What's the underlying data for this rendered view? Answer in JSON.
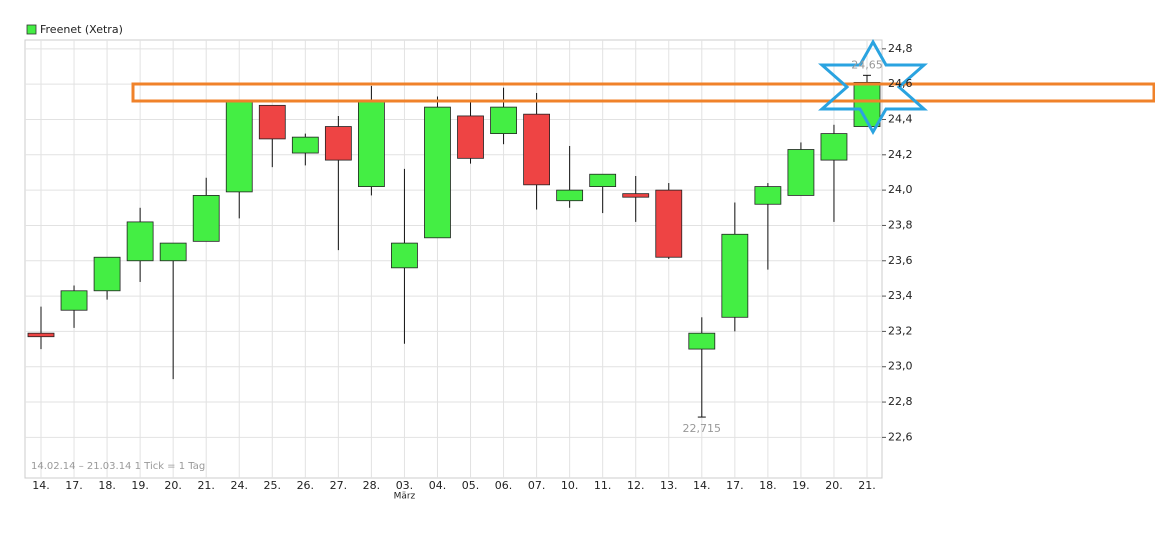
{
  "chart_data": {
    "type": "candlestick",
    "legend": "Freenet (Xetra)",
    "legend_color": "#44ee44",
    "up_color": "#44ee44",
    "down_color": "#ee4444",
    "caption": "14.02.14 – 21.03.14   1 Tick = 1 Tag",
    "month_label": "März",
    "categories": [
      "14.",
      "17.",
      "18.",
      "19.",
      "20.",
      "21.",
      "24.",
      "25.",
      "26.",
      "27.",
      "28.",
      "03.",
      "04.",
      "05.",
      "06.",
      "07.",
      "10.",
      "11.",
      "12.",
      "13.",
      "14.",
      "17.",
      "18.",
      "19.",
      "20.",
      "21."
    ],
    "open": [
      23.19,
      23.32,
      23.43,
      23.6,
      23.6,
      23.71,
      23.99,
      24.48,
      24.21,
      24.36,
      24.02,
      23.56,
      23.73,
      24.42,
      24.32,
      24.43,
      23.94,
      24.02,
      23.98,
      24.0,
      23.1,
      23.28,
      23.92,
      23.97,
      24.17,
      24.36
    ],
    "high": [
      23.34,
      23.46,
      23.62,
      23.9,
      23.7,
      24.07,
      24.51,
      24.48,
      24.32,
      24.42,
      24.59,
      24.12,
      24.53,
      24.51,
      24.58,
      24.55,
      24.25,
      24.09,
      24.08,
      24.04,
      23.28,
      23.93,
      24.04,
      24.27,
      24.37,
      24.65
    ],
    "low": [
      23.1,
      23.22,
      23.38,
      23.48,
      22.93,
      23.71,
      23.84,
      24.13,
      24.14,
      23.66,
      23.97,
      23.13,
      23.73,
      24.15,
      24.26,
      23.89,
      23.9,
      23.87,
      23.82,
      23.61,
      22.715,
      23.2,
      23.55,
      23.97,
      23.82,
      24.36
    ],
    "close": [
      23.17,
      23.43,
      23.62,
      23.82,
      23.7,
      23.97,
      24.51,
      24.29,
      24.3,
      24.17,
      24.51,
      23.7,
      24.47,
      24.18,
      24.47,
      24.03,
      24.0,
      24.09,
      23.96,
      23.62,
      23.19,
      23.75,
      24.02,
      24.23,
      24.32,
      24.61
    ],
    "annotations": [
      {
        "value": 24.65,
        "label": "24,65"
      },
      {
        "value": 22.715,
        "label": "22,715"
      }
    ],
    "ylim": [
      22.37,
      24.85
    ],
    "yticks": [
      {
        "value": 22.6,
        "label": "22,6"
      },
      {
        "value": 22.8,
        "label": "22,8"
      },
      {
        "value": 23.0,
        "label": "23,0"
      },
      {
        "value": 23.2,
        "label": "23,2"
      },
      {
        "value": 23.4,
        "label": "23,4"
      },
      {
        "value": 23.6,
        "label": "23,6"
      },
      {
        "value": 23.8,
        "label": "23,8"
      },
      {
        "value": 24.0,
        "label": "24,0"
      },
      {
        "value": 24.2,
        "label": "24,2"
      },
      {
        "value": 24.4,
        "label": "24,4"
      },
      {
        "value": 24.6,
        "label": "24,6"
      },
      {
        "value": 24.8,
        "label": "24,8"
      }
    ],
    "grid": true
  }
}
